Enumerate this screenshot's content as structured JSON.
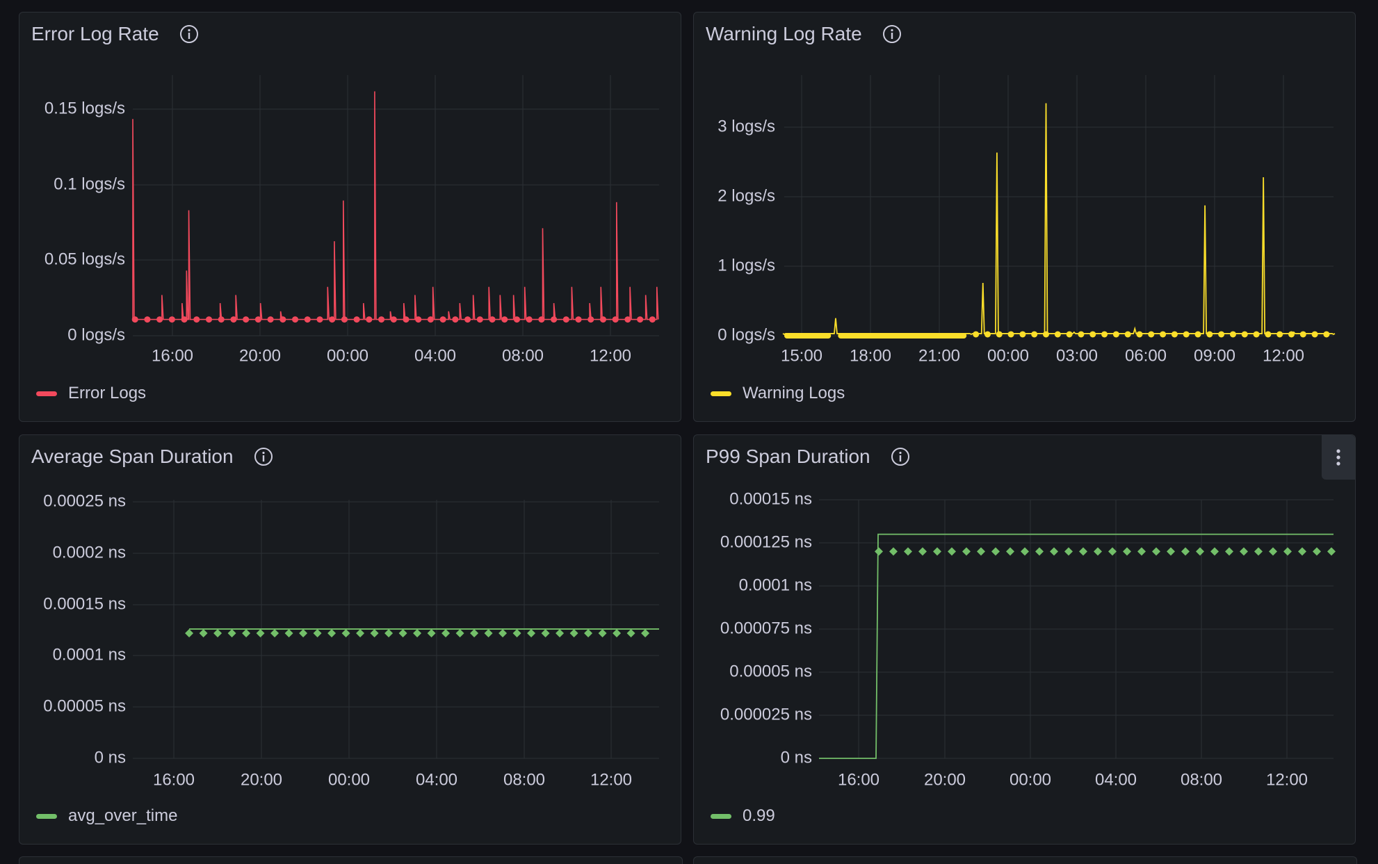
{
  "colors": {
    "error": "#f2495c",
    "warning": "#fade2a",
    "green": "#73bf69"
  },
  "panels": [
    {
      "title": "Error Log Rate",
      "legend": "Error Logs",
      "color": "#f2495c",
      "icon": "info-icon"
    },
    {
      "title": "Warning Log Rate",
      "legend": "Warning Logs",
      "color": "#fade2a",
      "icon": "info-icon"
    },
    {
      "title": "Average Span Duration",
      "legend": "avg_over_time",
      "color": "#73bf69",
      "icon": "info-icon"
    },
    {
      "title": "P99 Span Duration",
      "legend": "0.99",
      "color": "#73bf69",
      "icon": "info-icon",
      "menu_icon": "vertical-dots-icon"
    }
  ],
  "chart_data": [
    {
      "type": "line",
      "series": [
        {
          "name": "Error Logs",
          "x_hours": [
            0,
            0.05,
            0.2,
            1.1,
            1.3,
            1.6,
            2.2,
            2.4,
            2.5,
            2.6,
            2.75,
            3.9,
            4.6,
            5.5,
            5.7,
            6.6,
            7.4,
            8.7,
            9.0,
            9.4,
            9.8,
            10.3,
            10.8,
            11.5,
            12.1,
            12.6,
            13.4,
            14.1,
            14.6,
            15.2,
            15.9,
            16.4,
            17.0,
            17.5,
            18.3,
            18.8,
            19.6,
            20.4,
            20.9,
            21.6,
            22.2,
            22.9,
            23.4
          ],
          "values": [
            0.133,
            0.01,
            0.01,
            0.01,
            0.025,
            0.01,
            0.02,
            0.04,
            0.077,
            0.01,
            0.01,
            0.02,
            0.025,
            0.01,
            0.02,
            0.015,
            0.01,
            0.03,
            0.058,
            0.083,
            0.01,
            0.02,
            0.15,
            0.015,
            0.02,
            0.025,
            0.03,
            0.015,
            0.02,
            0.025,
            0.03,
            0.025,
            0.025,
            0.03,
            0.066,
            0.02,
            0.03,
            0.02,
            0.03,
            0.082,
            0.03,
            0.025,
            0.03
          ]
        }
      ],
      "x_tick_labels": [
        "16:00",
        "20:00",
        "00:00",
        "04:00",
        "08:00",
        "12:00"
      ],
      "y_tick_labels": [
        "0 logs/s",
        "0.05 logs/s",
        "0.1 logs/s",
        "0.15 logs/s"
      ],
      "ylim": [
        0,
        0.16
      ]
    },
    {
      "type": "line",
      "series": [
        {
          "name": "Warning Logs",
          "x_hours": [
            0,
            2,
            2.2,
            8,
            8.5,
            9.1,
            11.2,
            12.4,
            15,
            18,
            20.5,
            21.8,
            23.5
          ],
          "values": [
            0.02,
            0.03,
            0.25,
            0.02,
            0.75,
            2.6,
            3.3,
            0.05,
            0.1,
            1.85,
            2.25,
            0.05,
            0.02
          ]
        }
      ],
      "x_tick_labels": [
        "15:00",
        "18:00",
        "21:00",
        "00:00",
        "03:00",
        "06:00",
        "09:00",
        "12:00"
      ],
      "y_tick_labels": [
        "0 logs/s",
        "1 logs/s",
        "2 logs/s",
        "3 logs/s"
      ],
      "ylim": [
        0,
        3.7
      ]
    },
    {
      "type": "line",
      "series": [
        {
          "name": "avg_over_time",
          "start_hour": 1.7,
          "value": 0.000121
        }
      ],
      "x_tick_labels": [
        "16:00",
        "20:00",
        "00:00",
        "04:00",
        "08:00",
        "12:00"
      ],
      "y_tick_labels": [
        "0 ns",
        "0.00005 ns",
        "0.0001 ns",
        "0.00015 ns",
        "0.0002 ns",
        "0.00025 ns"
      ],
      "ylim": [
        0,
        0.00025
      ]
    },
    {
      "type": "line",
      "series": [
        {
          "name": "0.99",
          "step_hour": 1.7,
          "value": 0.00013,
          "point_value": 0.00012
        }
      ],
      "x_tick_labels": [
        "16:00",
        "20:00",
        "00:00",
        "04:00",
        "08:00",
        "12:00"
      ],
      "y_tick_labels": [
        "0 ns",
        "0.000025 ns",
        "0.00005 ns",
        "0.000075 ns",
        "0.0001 ns",
        "0.000125 ns",
        "0.00015 ns"
      ],
      "ylim": [
        0,
        0.00015
      ]
    }
  ]
}
